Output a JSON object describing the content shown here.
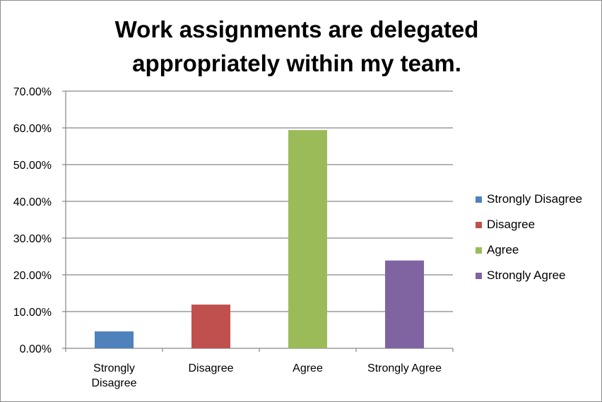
{
  "chart_data": {
    "type": "bar",
    "title_lines": [
      "Work assignments are delegated",
      "appropriately within my team."
    ],
    "categories": [
      {
        "lines": [
          "Strongly",
          "Disagree"
        ]
      },
      {
        "lines": [
          "Disagree"
        ]
      },
      {
        "lines": [
          "Agree"
        ]
      },
      {
        "lines": [
          "Strongly Agree"
        ]
      }
    ],
    "values": [
      4.6,
      11.9,
      59.4,
      23.9
    ],
    "colors": [
      "#4f81bd",
      "#c0504d",
      "#9bbb59",
      "#8064a2"
    ],
    "ylim": [
      0,
      70
    ],
    "yticks": [
      0,
      10,
      20,
      30,
      40,
      50,
      60,
      70
    ],
    "ytick_labels": [
      "0.00%",
      "10.00%",
      "20.00%",
      "30.00%",
      "40.00%",
      "50.00%",
      "60.00%",
      "70.00%"
    ],
    "grid": true,
    "legend_position": "right",
    "legend": [
      {
        "label": "Strongly Disagree",
        "color": "#4f81bd"
      },
      {
        "label": "Disagree",
        "color": "#c0504d"
      },
      {
        "label": "Agree",
        "color": "#9bbb59"
      },
      {
        "label": "Strongly Agree",
        "color": "#8064a2"
      }
    ]
  }
}
